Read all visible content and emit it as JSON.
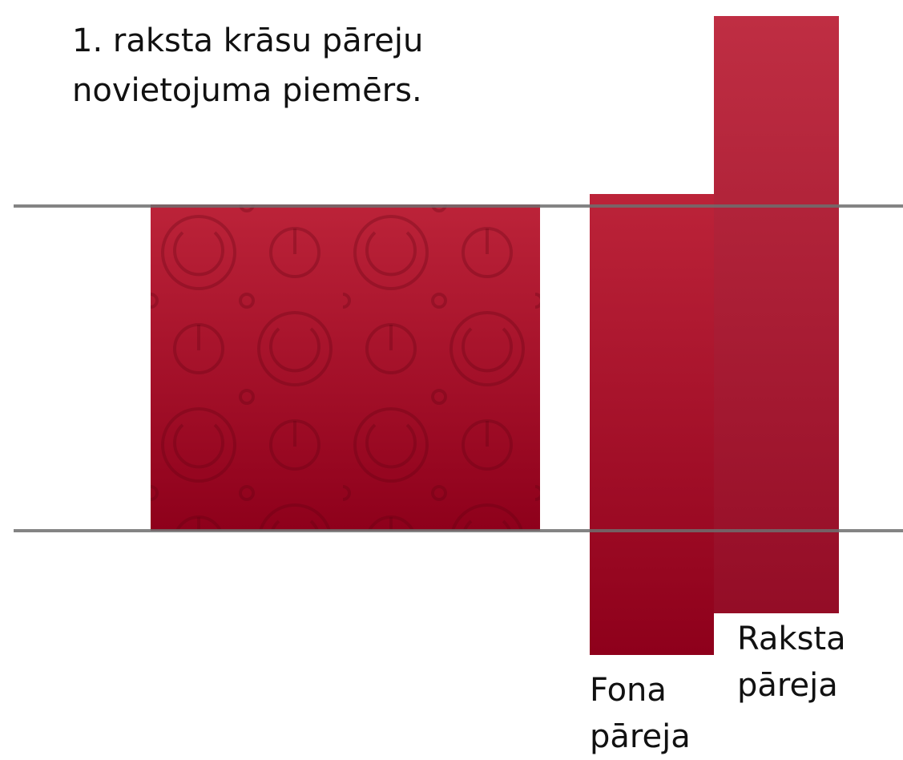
{
  "title": {
    "lines": [
      "1. raksta krāsu pāreju",
      "novietojuma piemērs."
    ]
  },
  "labels": {
    "background_gradient": [
      "Fona",
      "pāreja"
    ],
    "pattern_gradient": [
      "Raksta",
      "pāreja"
    ]
  }
}
